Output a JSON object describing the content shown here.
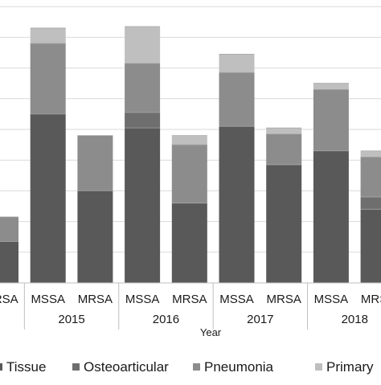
{
  "chart_data": {
    "type": "bar",
    "stacked": true,
    "xlabel": "Year",
    "categories": [
      "MRSA",
      "MSSA",
      "MRSA",
      "MSSA",
      "MRSA",
      "MSSA",
      "MRSA",
      "MSSA",
      "MRSA"
    ],
    "groups": [
      {
        "label": "",
        "start": 0,
        "end": 0
      },
      {
        "label": "2015",
        "start": 1,
        "end": 2
      },
      {
        "label": "2016",
        "start": 3,
        "end": 4
      },
      {
        "label": "2017",
        "start": 5,
        "end": 6
      },
      {
        "label": "2018",
        "start": 7,
        "end": 8
      }
    ],
    "ylim": [
      0,
      9.2
    ],
    "gridlines": [
      1,
      2,
      3,
      4,
      5,
      6,
      7,
      8,
      9
    ],
    "grid": true,
    "legend_position": "bottom",
    "series": [
      {
        "name": "Tissue",
        "color": "#595959",
        "values": [
          1.35,
          5.5,
          3.0,
          5.05,
          2.6,
          5.1,
          3.85,
          4.3,
          2.4
        ]
      },
      {
        "name": "Osteoarticular",
        "color": "#6e6e6e",
        "values": [
          0,
          0,
          0,
          0.5,
          0,
          0,
          0,
          0,
          0.4
        ]
      },
      {
        "name": "Pneumonia",
        "color": "#8c8c8c",
        "values": [
          0.8,
          2.3,
          1.8,
          1.6,
          1.9,
          1.75,
          1.0,
          2.0,
          1.3
        ]
      },
      {
        "name": "Primary",
        "color": "#bfbfbf",
        "values": [
          0,
          0.5,
          0,
          1.2,
          0.3,
          0.6,
          0.2,
          0.2,
          0.2
        ]
      }
    ]
  }
}
